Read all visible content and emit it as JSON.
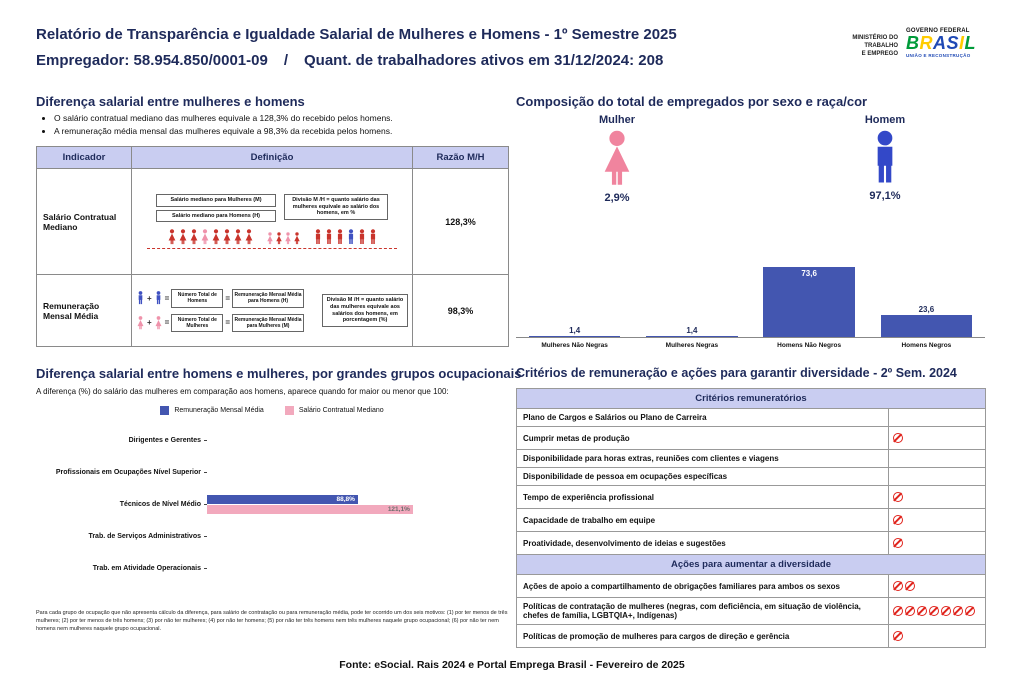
{
  "header": {
    "title": "Relatório de Transparência e Igualdade Salarial de Mulheres e Homens - 1º Semestre 2025",
    "employer": "Empregador: 58.954.850/0001-09",
    "separator": "/",
    "active_workers": "Quant. de trabalhadores ativos em 31/12/2024: 208",
    "ministry_lines": [
      "MINISTÉRIO DO",
      "TRABALHO",
      "E EMPREGO"
    ],
    "gov_label": "GOVERNO FEDERAL",
    "brand_letters": [
      "B",
      "R",
      "A",
      "S",
      "I",
      "L"
    ],
    "gov_sub": "UNIÃO E RECONSTRUÇÃO"
  },
  "salary_gap": {
    "title": "Diferença salarial entre mulheres e homens",
    "bullets": [
      "O salário contratual mediano das mulheres equivale a 128,3% do recebido pelos homens.",
      "A remuneração média mensal das mulheres equivale a 98,3% da recebida pelos homens."
    ],
    "table": {
      "headers": [
        "Indicador",
        "Definição",
        "Razão M/H"
      ],
      "rows": [
        {
          "indicator": "Salário Contratual Mediano",
          "box_women": "Salário mediano para Mulheres (M)",
          "box_men": "Salário mediano para Homens (H)",
          "box_division": "Divisão M /H = quanto salário das mulheres equivale ao salário dos homens, em %",
          "ratio": "128,3%"
        },
        {
          "indicator": "Remuneração Mensal Média",
          "plus": "+",
          "equals": "=",
          "box_total_men": "Número Total de Homens",
          "box_avg_men": "Remuneração Mensal Média para Homens (H)",
          "box_total_women": "Número Total de Mulheres",
          "box_avg_women": "Remuneração Mensal Média para Mulheres (M)",
          "box_division": "Divisão M /H = quanto salário das mulheres equivale aos salários dos homens, em porcentagem (%)",
          "ratio": "98,3%"
        }
      ]
    }
  },
  "composition": {
    "title": "Composição do total de empregados por sexo e raça/cor",
    "female_label": "Mulher",
    "female_pct": "2,9%",
    "male_label": "Homem",
    "male_pct": "97,1%"
  },
  "occupational": {
    "title": "Diferença salarial entre homens e mulheres, por grandes grupos ocupacionais",
    "subtitle": "A diferença (%) do salário das mulheres em comparação aos homens, aparece quando for maior ou menor que 100:",
    "footnote": "Para cada grupo de ocupação que não apresenta cálculo da diferença, para salário de contratação ou para remuneração média, pode ter ocorrido um dos seis motivos: (1) por ter menos de três mulheres; (2) por ter menos de três homens; (3) por não ter mulheres; (4) por não ter homens; (5) por não ter três homens nem três mulheres naquele grupo ocupacional; (6) por não ter nem homens nem mulheres naquele grupo ocupacional."
  },
  "chart_data": [
    {
      "id": "composition-by-sex-race",
      "type": "bar",
      "title": "Composição do total de empregados por sexo e raça/cor",
      "categories": [
        "Mulheres Não Negras",
        "Mulheres Negras",
        "Homens Não Negros",
        "Homens Negros"
      ],
      "values": [
        1.4,
        1.4,
        73.6,
        23.6
      ],
      "value_labels": [
        "1,4",
        "1,4",
        "73,6",
        "23,6"
      ],
      "bar_color": "#4356b0",
      "ylim": [
        0,
        80
      ],
      "legend_position": "none",
      "grid": false
    },
    {
      "id": "salary-difference-by-occupation",
      "type": "bar",
      "orientation": "horizontal",
      "title": "Diferença salarial entre homens e mulheres, por grandes grupos ocupacionais",
      "categories": [
        "Dirigentes e Gerentes",
        "Profissionais em Ocupações Nível Superior",
        "Técnicos de Nível Médio",
        "Trab. de Serviços Administrativos",
        "Trab. em Atividade Operacionais"
      ],
      "series": [
        {
          "name": "Remuneração Mensal Média",
          "color": "#4356b0",
          "values": [
            null,
            null,
            88.8,
            null,
            null
          ],
          "value_labels": [
            "",
            "",
            "88,8%",
            "",
            ""
          ]
        },
        {
          "name": "Salário Contratual Mediano",
          "color": "#f2a9bd",
          "values": [
            null,
            null,
            121.1,
            null,
            null
          ],
          "value_labels": [
            "",
            "",
            "121,1%",
            "",
            ""
          ]
        }
      ],
      "xlim": [
        0,
        130
      ],
      "legend_position": "top",
      "grid": false
    }
  ],
  "criteria": {
    "title": "Critérios de remuneração e ações para garantir diversidade - 2º Sem. 2024",
    "section1_header": "Critérios remuneratórios",
    "section1_rows": [
      {
        "label": "Plano de Cargos e Salários ou Plano de Carreira",
        "marks": 0
      },
      {
        "label": "Cumprir metas de produção",
        "marks": 1
      },
      {
        "label": "Disponibilidade para horas extras, reuniões com clientes e viagens",
        "marks": 0
      },
      {
        "label": "Disponibilidade de pessoa em ocupações específicas",
        "marks": 0
      },
      {
        "label": "Tempo de experiência profissional",
        "marks": 1
      },
      {
        "label": "Capacidade de trabalho em equipe",
        "marks": 1
      },
      {
        "label": "Proatividade, desenvolvimento de ideias e sugestões",
        "marks": 1
      }
    ],
    "section2_header": "Ações para aumentar a diversidade",
    "section2_rows": [
      {
        "label": "Ações de apoio a compartilhamento de obrigações familiares para ambos os sexos",
        "marks": 2
      },
      {
        "label": "Políticas de contratação de mulheres (negras, com deficiência, em situação de violência, chefes de família, LGBTQIA+, Indígenas)",
        "marks": 7
      },
      {
        "label": "Políticas de promoção de mulheres para cargos de direção e gerência",
        "marks": 1
      }
    ]
  },
  "footer": {
    "source": "Fonte: eSocial. Rais 2024 e Portal Emprega Brasil - Fevereiro de 2025"
  }
}
